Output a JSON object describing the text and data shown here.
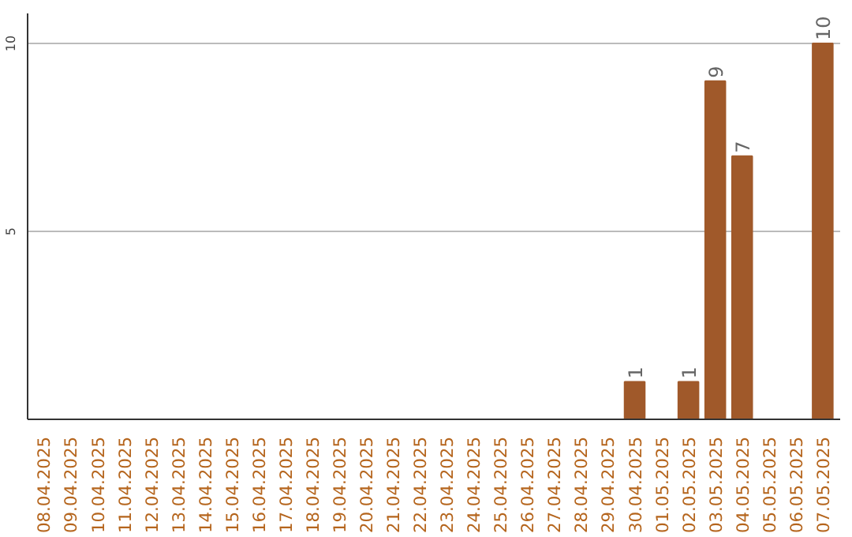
{
  "chart_data": {
    "type": "bar",
    "categories": [
      "08.04.2025",
      "09.04.2025",
      "10.04.2025",
      "11.04.2025",
      "12.04.2025",
      "13.04.2025",
      "14.04.2025",
      "15.04.2025",
      "16.04.2025",
      "17.04.2025",
      "18.04.2025",
      "19.04.2025",
      "20.04.2025",
      "21.04.2025",
      "22.04.2025",
      "23.04.2025",
      "24.04.2025",
      "25.04.2025",
      "26.04.2025",
      "27.04.2025",
      "28.04.2025",
      "29.04.2025",
      "30.04.2025",
      "01.05.2025",
      "02.05.2025",
      "03.05.2025",
      "04.05.2025",
      "05.05.2025",
      "06.05.2025",
      "07.05.2025"
    ],
    "values": [
      0,
      0,
      0,
      0,
      0,
      0,
      0,
      0,
      0,
      0,
      0,
      0,
      0,
      0,
      0,
      0,
      0,
      0,
      0,
      0,
      0,
      0,
      1,
      0,
      1,
      9,
      7,
      0,
      0,
      10
    ],
    "value_labels": [
      null,
      null,
      null,
      null,
      null,
      null,
      null,
      null,
      null,
      null,
      null,
      null,
      null,
      null,
      null,
      null,
      null,
      null,
      null,
      null,
      null,
      null,
      "1",
      null,
      "1",
      "9",
      "7",
      null,
      null,
      "10"
    ],
    "color": "#a0592a",
    "ylim": [
      0,
      10.8
    ],
    "yticks": [
      5,
      10
    ],
    "grid": "y"
  }
}
